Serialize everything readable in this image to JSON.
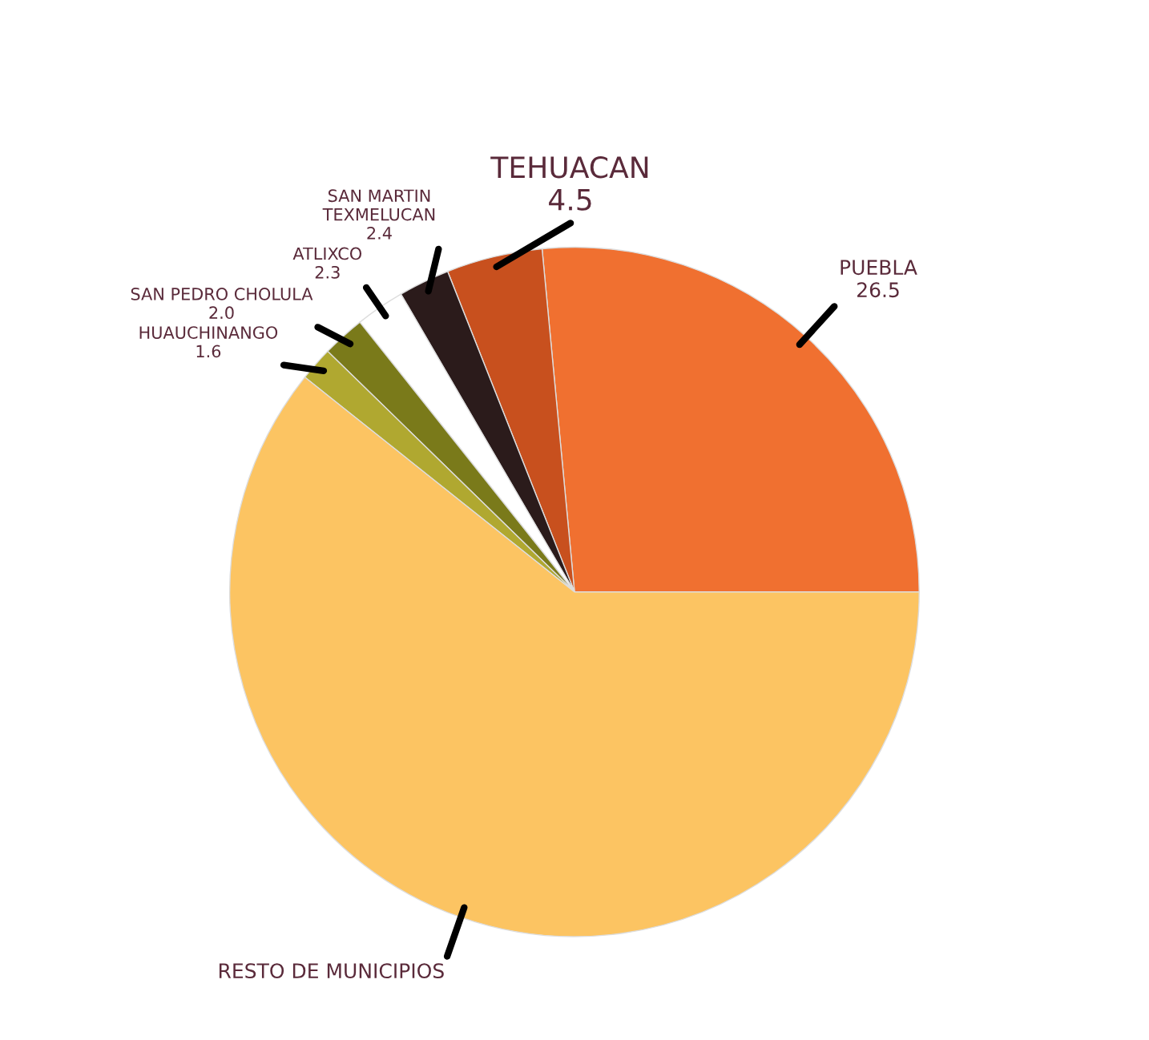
{
  "chart_data": {
    "type": "pie",
    "categories": [
      "PUEBLA",
      "TEHUACAN",
      "SAN MARTIN\nTEXMELUCAN",
      "ATLIXCO",
      "SAN PEDRO CHOLULA",
      "HUAUCHINANGO",
      "RESTO DE MUNICIPIOS"
    ],
    "values": [
      26.5,
      4.5,
      2.4,
      2.3,
      2.0,
      1.6,
      60.7
    ],
    "value_labels": [
      "26.5",
      "4.5",
      "2.4",
      "2.3",
      "2.0",
      "1.6",
      null
    ],
    "colors": [
      "#f07030",
      "#c8501e",
      "#2b1b1b",
      "#ffffff",
      "#7a7a1a",
      "#b0a830",
      "#fcc462"
    ]
  }
}
